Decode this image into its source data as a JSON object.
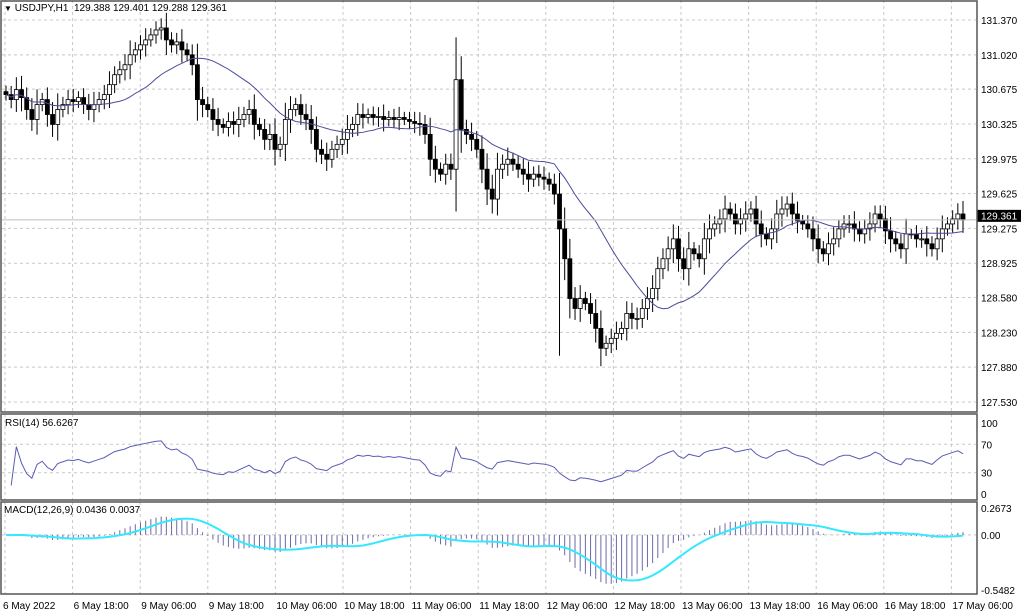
{
  "header": {
    "symbol": "USDJPY,H1",
    "open": "129.388",
    "high": "129.401",
    "low": "129.288",
    "close": "129.361",
    "menu_icon": "triangle-down-icon"
  },
  "rsi": {
    "label": "RSI(14) 56.6267",
    "ticks": [
      "100",
      "70",
      "30",
      "0"
    ],
    "color": "#5b5bb5"
  },
  "macd": {
    "label": "MACD(12,26,9) 0.0436 0.0037",
    "ticks": [
      "0.2673",
      "0.00",
      "-0.5482"
    ],
    "hist_color": "#6a6aaa",
    "signal_color": "#33e8ff"
  },
  "colors": {
    "ma": "#4b4b9b",
    "bull_fill": "#ffffff",
    "bear_fill": "#000000",
    "grid": "#c8c8c8"
  },
  "chart_data": {
    "type": "candlestick",
    "timeframe": "H1",
    "ylim": [
      127.53,
      131.37
    ],
    "grid": true,
    "price_ticks": [
      "131.370",
      "131.020",
      "130.675",
      "130.325",
      "129.975",
      "129.625",
      "129.275",
      "128.925",
      "128.580",
      "128.230",
      "127.880",
      "127.530"
    ],
    "current_price": "129.361",
    "time_ticks": [
      "6 May 2022",
      "6 May 18:00",
      "9 May 06:00",
      "9 May 18:00",
      "10 May 06:00",
      "10 May 18:00",
      "11 May 06:00",
      "11 May 18:00",
      "12 May 06:00",
      "12 May 18:00",
      "13 May 06:00",
      "13 May 18:00",
      "16 May 06:00",
      "16 May 18:00",
      "17 May 06:00"
    ],
    "moving_average_period": 20,
    "closes": [
      130.62,
      130.57,
      130.67,
      130.59,
      130.47,
      130.37,
      130.52,
      130.57,
      130.42,
      130.32,
      130.47,
      130.52,
      130.57,
      130.55,
      130.59,
      130.52,
      130.47,
      130.52,
      130.57,
      130.62,
      130.72,
      130.82,
      130.87,
      130.92,
      131.02,
      131.07,
      131.12,
      131.17,
      131.22,
      131.27,
      131.29,
      131.17,
      131.12,
      131.15,
      131.07,
      131.02,
      130.92,
      130.57,
      130.52,
      130.47,
      130.37,
      130.32,
      130.29,
      130.35,
      130.32,
      130.37,
      130.42,
      130.47,
      130.32,
      130.27,
      130.17,
      130.22,
      130.07,
      130.12,
      130.37,
      130.47,
      130.52,
      130.42,
      130.37,
      130.27,
      130.07,
      130.02,
      129.97,
      130.07,
      130.12,
      130.17,
      130.27,
      130.32,
      130.42,
      130.39,
      130.42,
      130.39,
      130.4,
      130.37,
      130.39,
      130.37,
      130.39,
      130.37,
      130.35,
      130.33,
      130.32,
      130.22,
      129.97,
      129.87,
      129.82,
      129.92,
      129.87,
      130.77,
      130.27,
      130.22,
      130.17,
      130.07,
      129.87,
      129.67,
      129.57,
      129.87,
      129.92,
      129.97,
      129.92,
      129.87,
      129.82,
      129.77,
      129.82,
      129.79,
      129.77,
      129.72,
      129.62,
      129.27,
      128.97,
      128.57,
      128.47,
      128.57,
      128.52,
      128.42,
      128.27,
      128.07,
      128.12,
      128.17,
      128.22,
      128.27,
      128.42,
      128.37,
      128.37,
      128.47,
      128.57,
      128.67,
      128.87,
      128.97,
      129.07,
      129.17,
      128.97,
      128.87,
      129.07,
      129.02,
      128.97,
      129.17,
      129.27,
      129.32,
      129.37,
      129.47,
      129.42,
      129.32,
      129.37,
      129.42,
      129.47,
      129.32,
      129.22,
      129.17,
      129.27,
      129.42,
      129.47,
      129.52,
      129.42,
      129.35,
      129.32,
      129.27,
      129.17,
      129.07,
      129.02,
      129.12,
      129.17,
      129.27,
      129.32,
      129.32,
      129.27,
      129.22,
      129.27,
      129.32,
      129.42,
      129.37,
      129.25,
      129.17,
      129.12,
      129.07,
      129.22,
      129.22,
      129.17,
      129.17,
      129.12,
      129.07,
      129.17,
      129.27,
      129.32,
      129.37,
      129.42,
      129.361
    ]
  }
}
